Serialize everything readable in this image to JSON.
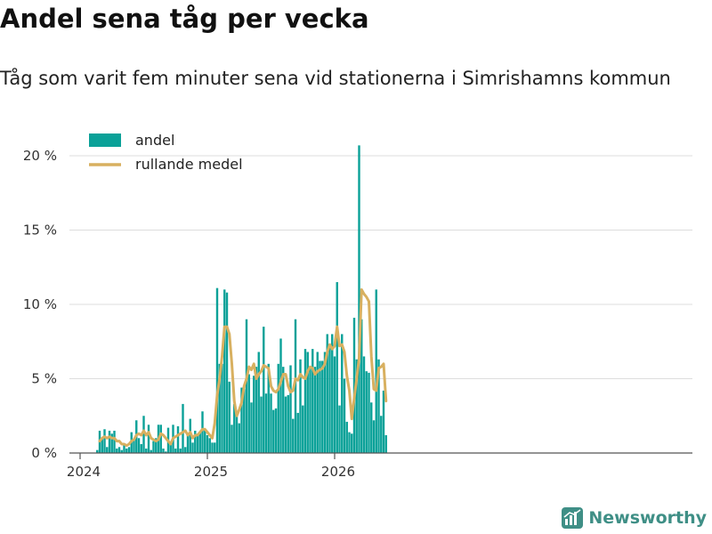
{
  "header": {
    "title": "Andel sena tåg per vecka",
    "subtitle": "Tåg som varit fem minuter sena vid stationerna i Simrishamns kommun"
  },
  "brand": {
    "name": "Newsworthy"
  },
  "colors": {
    "bar": "#0aa198",
    "line": "#d8b060",
    "grid": "#dddddd",
    "brand": "#3f8f86"
  },
  "chart_data": {
    "type": "bar",
    "title": "Andel sena tåg per vecka",
    "subtitle": "Tåg som varit fem minuter sena vid stationerna i Simrishamns kommun",
    "xlabel": "",
    "ylabel": "",
    "ylim": [
      0,
      21.5
    ],
    "y_ticks": [
      0,
      5,
      10,
      15,
      20
    ],
    "y_tick_labels": [
      "0 %",
      "5 %",
      "10 %",
      "15 %",
      "20 %"
    ],
    "x_ticks": [
      "2024",
      "2025",
      "2026"
    ],
    "x_start": "2024-01",
    "legend": [
      "andel",
      "rullande medel"
    ],
    "legend_position": "top-left",
    "series": [
      {
        "name": "andel",
        "type": "bar",
        "values": [
          0,
          0,
          0,
          0,
          0,
          0,
          0,
          0.2,
          1.5,
          1.0,
          1.6,
          0.4,
          1.5,
          1.3,
          1.5,
          0.3,
          0.4,
          0.2,
          0.6,
          0.3,
          0.4,
          1.4,
          0.9,
          2.2,
          1.0,
          0.6,
          2.5,
          0.3,
          1.9,
          0.2,
          0.8,
          1.0,
          1.9,
          1.9,
          0.3,
          0.1,
          1.7,
          0.7,
          1.9,
          0.3,
          1.8,
          0.3,
          3.3,
          0.4,
          1.3,
          2.3,
          0.7,
          1.5,
          1.3,
          1.4,
          2.8,
          1.6,
          1.2,
          1.0,
          0.7,
          0.7,
          11.1,
          6.0,
          6.0,
          11.0,
          10.8,
          4.8,
          1.9,
          3.3,
          2.5,
          2.0,
          4.4,
          4.3,
          9.0,
          5.3,
          3.4,
          5.2,
          5.8,
          6.8,
          3.8,
          8.5,
          4.0,
          6.0,
          4.0,
          2.9,
          3.0,
          6.0,
          7.7,
          5.8,
          3.8,
          3.9,
          5.9,
          2.3,
          9.0,
          2.7,
          6.3,
          3.2,
          7.0,
          6.8,
          5.8,
          7.0,
          5.8,
          6.8,
          6.2,
          6.2,
          6.8,
          8.0,
          7.3,
          8.0,
          6.5,
          11.5,
          3.2,
          8.0,
          5.0,
          2.1,
          1.4,
          1.3,
          9.1,
          6.3,
          20.7,
          9.0,
          6.5,
          5.5,
          5.4,
          3.4,
          2.2,
          11.0,
          6.3,
          2.5,
          4.2,
          1.2
        ]
      },
      {
        "name": "rullande medel",
        "type": "line",
        "values": [
          null,
          null,
          null,
          null,
          null,
          null,
          null,
          null,
          0.8,
          1.0,
          1.1,
          1.0,
          1.1,
          1.0,
          1.0,
          0.8,
          0.8,
          0.6,
          0.6,
          0.5,
          0.6,
          0.8,
          0.9,
          1.2,
          1.3,
          1.2,
          1.5,
          1.2,
          1.4,
          1.0,
          0.9,
          0.8,
          0.9,
          1.3,
          1.2,
          1.0,
          0.8,
          0.6,
          1.0,
          1.1,
          1.2,
          1.3,
          1.4,
          1.5,
          1.2,
          1.4,
          1.0,
          1.2,
          1.2,
          1.4,
          1.6,
          1.6,
          1.4,
          1.2,
          1.0,
          2.0,
          3.9,
          5.0,
          6.5,
          8.5,
          8.5,
          8.0,
          6.0,
          3.5,
          2.5,
          2.9,
          3.4,
          4.5,
          5.0,
          5.8,
          5.6,
          6.0,
          5.0,
          5.3,
          5.5,
          5.9,
          5.8,
          5.7,
          4.5,
          4.2,
          4.1,
          4.3,
          4.8,
          5.3,
          5.3,
          4.5,
          4.1,
          4.2,
          5.0,
          4.9,
          5.3,
          5.1,
          5.0,
          5.5,
          5.8,
          5.7,
          5.3,
          5.5,
          5.6,
          5.7,
          6.0,
          6.8,
          7.3,
          7.0,
          7.2,
          8.5,
          7.2,
          7.3,
          6.8,
          5.2,
          4.2,
          2.3,
          3.7,
          5.0,
          6.4,
          11.0,
          10.7,
          10.5,
          10.2,
          6.5,
          4.3,
          4.2,
          5.7,
          5.8,
          6.0,
          3.5
        ]
      }
    ]
  }
}
